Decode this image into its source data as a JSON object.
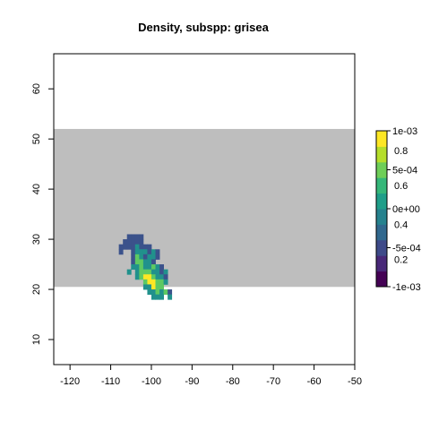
{
  "chart_data": {
    "type": "heatmap",
    "title": "Density, subspp: grisea",
    "xlim": [
      -124,
      -50
    ],
    "ylim": [
      5,
      67
    ],
    "x_ticks": [
      -120,
      -110,
      -100,
      -90,
      -80,
      -70,
      -60,
      -50
    ],
    "y_ticks": [
      10,
      20,
      30,
      40,
      50,
      60
    ],
    "y_tick_labels_rotated": true,
    "grid": false,
    "background_band": {
      "x": [
        -124,
        -50
      ],
      "y": [
        20.5,
        52
      ],
      "color": "#bebebe"
    },
    "cell_size": 1,
    "cells_origin": {
      "x": -108,
      "y": 31
    },
    "cells_rows_top_to_bottom": [
      "..3333..........",
      ".33333..........",
      "33332333........",
      "3..3222323......",
      "...3123223......",
      "...311223.......",
      "...22122123.....",
      "..2.21112232....",
      "....21001223....",
      "......100112....",
      "......22011.....",
      ".......221213...",
      "........222.2..."
    ],
    "cell_colors": {
      "0": "#fde725",
      "1": "#5ec962",
      "2": "#21918c",
      "3": "#3b528b",
      "4": "#440154"
    },
    "legend": {
      "position": "right",
      "range": [
        -0.001,
        0.001
      ],
      "labels": [
        "1e-03",
        "5e-04",
        "0e+00",
        "-5e-04",
        "-1e-03"
      ],
      "label_values": [
        0.001,
        0.0005,
        0,
        -0.0005,
        -0.001
      ],
      "inner_labels": [
        "0.8",
        "0.6",
        "0.4",
        "0.2"
      ],
      "inner_label_values": [
        0.00075,
        0.0003,
        -0.0002,
        -0.00065
      ],
      "colors": [
        "#440154",
        "#482878",
        "#3e4a89",
        "#31688e",
        "#26828e",
        "#1f9e89",
        "#35b779",
        "#6ece58",
        "#b5de2b",
        "#fde725"
      ]
    }
  }
}
